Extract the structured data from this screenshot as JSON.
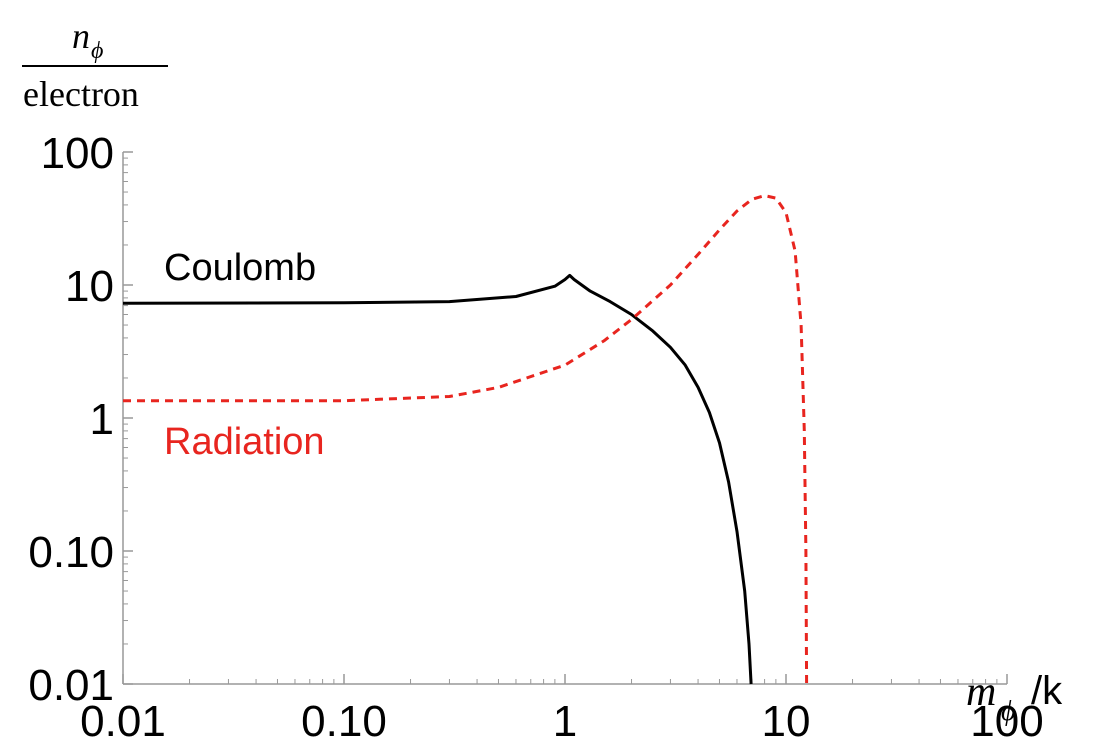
{
  "chart_data": {
    "type": "line",
    "title": "",
    "xscale": "log",
    "yscale": "log",
    "xlim": [
      0.01,
      100
    ],
    "ylim": [
      0.01,
      100
    ],
    "grid": false,
    "xlabel": {
      "main": "m",
      "sub": "ϕ",
      "rest": "/k"
    },
    "ylabel": {
      "numerator_main": "n",
      "numerator_sub": "ϕ",
      "denominator": "electron"
    },
    "x_ticks": [
      {
        "value": 0.01,
        "label": "0.01"
      },
      {
        "value": 0.1,
        "label": "0.10"
      },
      {
        "value": 1,
        "label": "1"
      },
      {
        "value": 10,
        "label": "10"
      },
      {
        "value": 100,
        "label": "100"
      }
    ],
    "y_ticks": [
      {
        "value": 0.01,
        "label": "0.01"
      },
      {
        "value": 0.1,
        "label": "0.10"
      },
      {
        "value": 1,
        "label": "1"
      },
      {
        "value": 10,
        "label": "10"
      },
      {
        "value": 100,
        "label": "100"
      }
    ],
    "series": [
      {
        "name": "Coulomb",
        "color": "#000000",
        "dash": "solid",
        "points": [
          [
            0.01,
            7.3
          ],
          [
            0.1,
            7.35
          ],
          [
            0.3,
            7.5
          ],
          [
            0.6,
            8.2
          ],
          [
            0.9,
            9.8
          ],
          [
            1.0,
            11.0
          ],
          [
            1.05,
            11.8
          ],
          [
            1.1,
            11.0
          ],
          [
            1.3,
            9.0
          ],
          [
            1.6,
            7.5
          ],
          [
            2.0,
            6.0
          ],
          [
            2.5,
            4.5
          ],
          [
            3.0,
            3.4
          ],
          [
            3.5,
            2.5
          ],
          [
            4.0,
            1.7
          ],
          [
            4.5,
            1.1
          ],
          [
            5.0,
            0.65
          ],
          [
            5.5,
            0.33
          ],
          [
            6.0,
            0.14
          ],
          [
            6.5,
            0.05
          ],
          [
            6.8,
            0.02
          ],
          [
            6.95,
            0.01
          ]
        ]
      },
      {
        "name": "Radiation",
        "color": "#e8251f",
        "dash": "dashed",
        "points": [
          [
            0.01,
            1.35
          ],
          [
            0.1,
            1.35
          ],
          [
            0.3,
            1.45
          ],
          [
            0.5,
            1.7
          ],
          [
            1.0,
            2.5
          ],
          [
            1.5,
            3.8
          ],
          [
            2.0,
            5.5
          ],
          [
            3.0,
            10.0
          ],
          [
            4.0,
            17.0
          ],
          [
            5.0,
            26.0
          ],
          [
            6.0,
            36.0
          ],
          [
            7.0,
            44.0
          ],
          [
            8.0,
            47.0
          ],
          [
            9.0,
            45.0
          ],
          [
            10.0,
            35.0
          ],
          [
            11.0,
            18.0
          ],
          [
            11.7,
            5.0
          ],
          [
            12.1,
            0.8
          ],
          [
            12.3,
            0.1
          ],
          [
            12.4,
            0.01
          ]
        ]
      }
    ],
    "annotations": [
      {
        "text": "Coulomb",
        "series": "Coulomb"
      },
      {
        "text": "Radiation",
        "series": "Radiation"
      }
    ]
  }
}
